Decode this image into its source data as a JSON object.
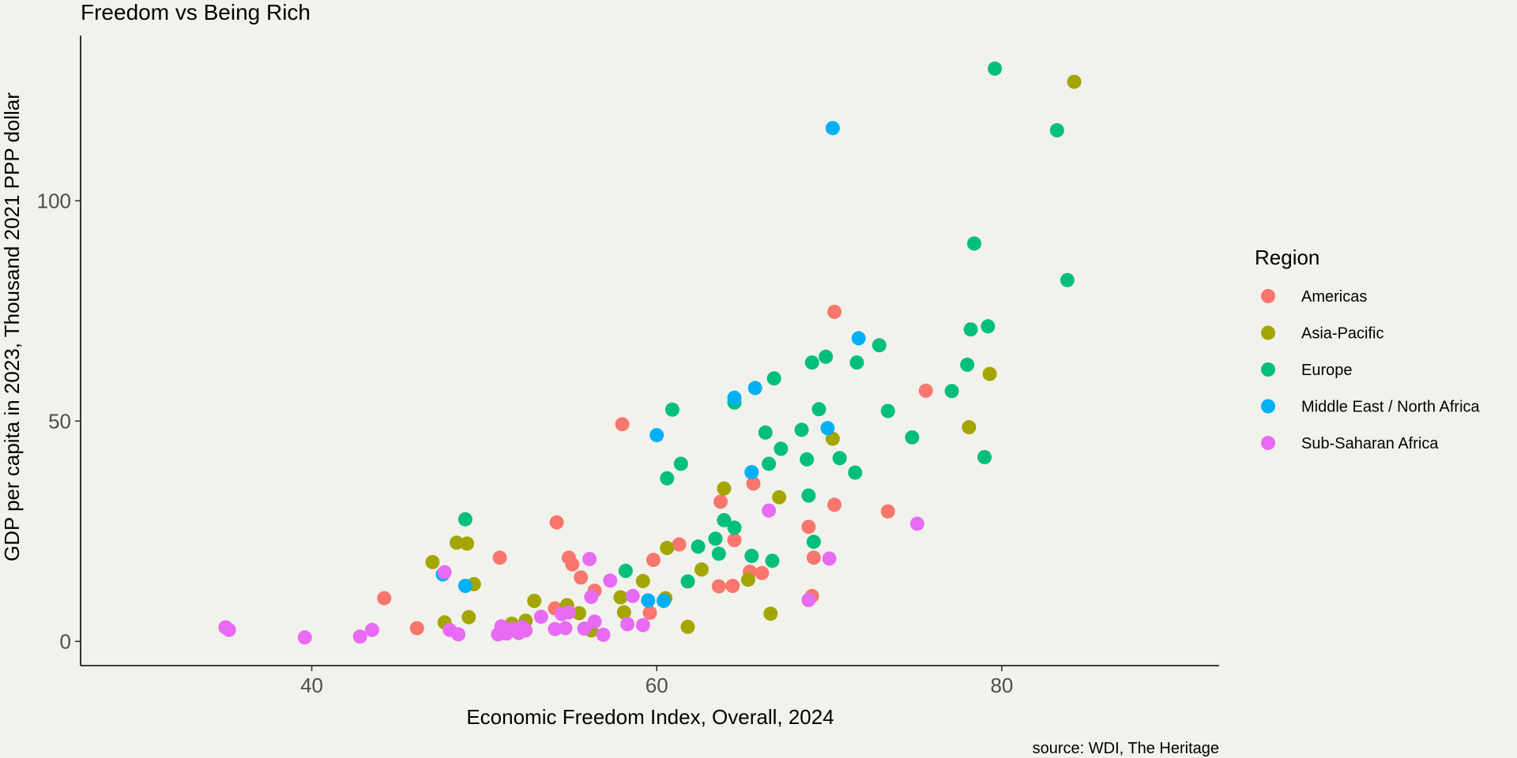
{
  "chart_data": {
    "type": "scatter",
    "title": "Freedom vs Being Rich",
    "xlabel": "Economic Freedom Index, Overall, 2024",
    "ylabel": "GDP per capita in 2023, Thousand 2021 PPP dollar",
    "caption": "source: WDI, The Heritage",
    "xlim": [
      26.6,
      92.6
    ],
    "ylim": [
      -5.5,
      137.5
    ],
    "x_ticks": [
      40,
      60,
      80
    ],
    "y_ticks": [
      0,
      50,
      100
    ],
    "grid": false,
    "legend": {
      "title": "Region",
      "position": "right"
    },
    "series": [
      {
        "name": "Americas",
        "color": "#F8766D",
        "points": [
          [
            44.2,
            9.8
          ],
          [
            46.1,
            3.0
          ],
          [
            50.9,
            19.0
          ],
          [
            54.1,
            7.5
          ],
          [
            54.2,
            27.0
          ],
          [
            54.9,
            19.0
          ],
          [
            55.1,
            17.5
          ],
          [
            55.6,
            14.5
          ],
          [
            56.4,
            11.5
          ],
          [
            58.0,
            49.3
          ],
          [
            59.6,
            6.5
          ],
          [
            59.8,
            18.5
          ],
          [
            61.3,
            22.0
          ],
          [
            63.6,
            12.5
          ],
          [
            63.7,
            31.7
          ],
          [
            64.4,
            12.6
          ],
          [
            64.5,
            23.0
          ],
          [
            65.4,
            15.8
          ],
          [
            65.6,
            35.8
          ],
          [
            66.1,
            15.5
          ],
          [
            68.8,
            26.0
          ],
          [
            69.0,
            10.3
          ],
          [
            69.1,
            19.0
          ],
          [
            70.3,
            31.0
          ],
          [
            70.3,
            74.8
          ],
          [
            73.4,
            29.5
          ],
          [
            75.6,
            56.9
          ]
        ]
      },
      {
        "name": "Asia-Pacific",
        "color": "#A3A500",
        "points": [
          [
            47.0,
            18.0
          ],
          [
            47.7,
            4.3
          ],
          [
            48.4,
            22.4
          ],
          [
            49.0,
            22.2
          ],
          [
            49.1,
            5.5
          ],
          [
            49.4,
            13.0
          ],
          [
            51.6,
            4.0
          ],
          [
            52.4,
            4.7
          ],
          [
            52.9,
            9.2
          ],
          [
            54.8,
            8.2
          ],
          [
            55.5,
            6.4
          ],
          [
            56.2,
            2.5
          ],
          [
            57.9,
            10.0
          ],
          [
            58.1,
            6.6
          ],
          [
            59.2,
            13.7
          ],
          [
            60.5,
            9.8
          ],
          [
            60.6,
            21.2
          ],
          [
            61.8,
            3.3
          ],
          [
            62.6,
            16.3
          ],
          [
            63.9,
            34.7
          ],
          [
            65.3,
            14.0
          ],
          [
            66.6,
            6.3
          ],
          [
            67.1,
            32.7
          ],
          [
            70.2,
            46.0
          ],
          [
            78.1,
            48.6
          ],
          [
            79.3,
            60.7
          ],
          [
            84.2,
            127.0
          ]
        ]
      },
      {
        "name": "Europe",
        "color": "#00BF7D",
        "points": [
          [
            48.9,
            27.7
          ],
          [
            58.2,
            16.0
          ],
          [
            60.6,
            37.0
          ],
          [
            60.9,
            52.6
          ],
          [
            61.4,
            40.3
          ],
          [
            61.8,
            13.6
          ],
          [
            62.4,
            21.5
          ],
          [
            63.4,
            23.3
          ],
          [
            63.6,
            19.9
          ],
          [
            63.9,
            27.5
          ],
          [
            64.5,
            54.2
          ],
          [
            64.5,
            25.8
          ],
          [
            65.5,
            19.4
          ],
          [
            66.3,
            47.4
          ],
          [
            66.5,
            40.3
          ],
          [
            66.7,
            18.3
          ],
          [
            66.8,
            59.7
          ],
          [
            67.2,
            43.7
          ],
          [
            68.4,
            48.0
          ],
          [
            68.7,
            41.3
          ],
          [
            68.8,
            33.1
          ],
          [
            69.0,
            63.3
          ],
          [
            69.1,
            22.6
          ],
          [
            69.4,
            52.7
          ],
          [
            69.8,
            64.6
          ],
          [
            70.6,
            41.6
          ],
          [
            71.5,
            38.3
          ],
          [
            71.6,
            63.3
          ],
          [
            72.9,
            67.2
          ],
          [
            73.4,
            52.3
          ],
          [
            74.8,
            46.3
          ],
          [
            77.1,
            56.8
          ],
          [
            78.0,
            62.8
          ],
          [
            78.2,
            70.8
          ],
          [
            78.4,
            90.3
          ],
          [
            79.0,
            41.8
          ],
          [
            79.2,
            71.5
          ],
          [
            79.6,
            130.0
          ],
          [
            83.2,
            116.0
          ],
          [
            83.8,
            82.0
          ]
        ]
      },
      {
        "name": "Middle East / North Africa",
        "color": "#00B0F6",
        "points": [
          [
            47.6,
            15.2
          ],
          [
            48.9,
            12.6
          ],
          [
            59.5,
            9.3
          ],
          [
            60.0,
            46.8
          ],
          [
            60.4,
            9.2
          ],
          [
            64.5,
            55.3
          ],
          [
            65.5,
            38.4
          ],
          [
            65.7,
            57.5
          ],
          [
            69.9,
            48.4
          ],
          [
            70.2,
            116.5
          ],
          [
            71.7,
            68.8
          ]
        ]
      },
      {
        "name": "Sub-Saharan Africa",
        "color": "#E76BF3",
        "points": [
          [
            35.0,
            3.2
          ],
          [
            35.2,
            2.6
          ],
          [
            39.6,
            0.9
          ],
          [
            42.8,
            1.1
          ],
          [
            43.5,
            2.6
          ],
          [
            47.7,
            15.7
          ],
          [
            48.0,
            2.6
          ],
          [
            48.5,
            1.6
          ],
          [
            50.8,
            1.6
          ],
          [
            51.0,
            3.4
          ],
          [
            51.3,
            1.8
          ],
          [
            51.6,
            2.8
          ],
          [
            52.0,
            1.9
          ],
          [
            52.2,
            3.2
          ],
          [
            52.4,
            2.5
          ],
          [
            53.3,
            5.6
          ],
          [
            54.1,
            2.8
          ],
          [
            54.5,
            6.2
          ],
          [
            54.7,
            3.0
          ],
          [
            54.9,
            6.6
          ],
          [
            55.8,
            2.9
          ],
          [
            56.1,
            18.7
          ],
          [
            56.2,
            10.1
          ],
          [
            56.4,
            4.5
          ],
          [
            56.9,
            1.5
          ],
          [
            57.3,
            13.8
          ],
          [
            58.3,
            3.9
          ],
          [
            58.6,
            10.3
          ],
          [
            59.2,
            3.7
          ],
          [
            66.5,
            29.7
          ],
          [
            68.8,
            9.4
          ],
          [
            70.0,
            18.8
          ],
          [
            75.1,
            26.7
          ]
        ]
      }
    ]
  }
}
